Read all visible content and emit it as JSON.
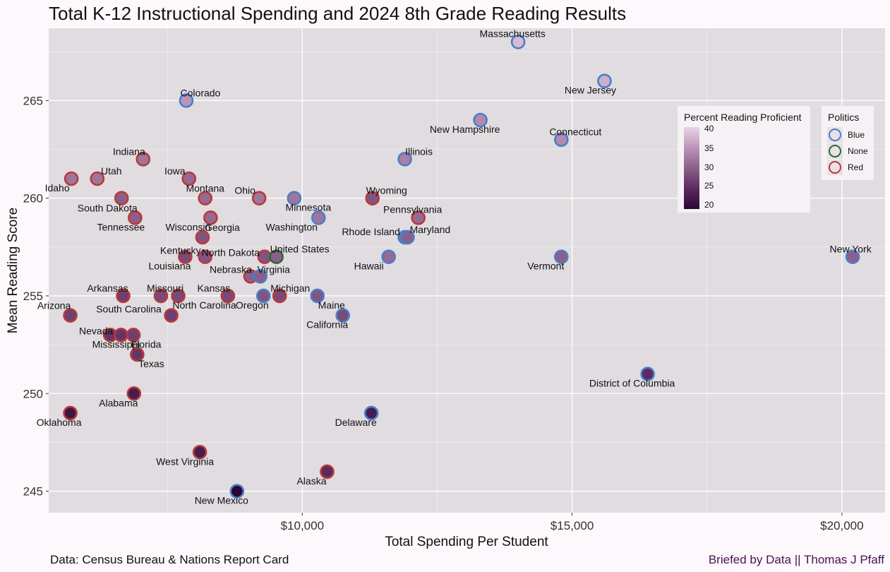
{
  "title": "Total K-12 Instructional Spending and 2024 8th Grade Reading Results",
  "caption_left": "Data: Census Bureau & Nations Report Card",
  "caption_right": "Briefed by Data || Thomas J Pfaff",
  "colors": {
    "panel": "#e0dce0",
    "grid": "#ffffff",
    "blue": "#4a7ec9",
    "none": "#1f6e32",
    "red": "#b83a3a",
    "fill_low": "#2b0733",
    "fill_high": "#e9d4e6"
  },
  "legend_fill": {
    "title": "Percent Reading Proficient",
    "ticks": [
      "40",
      "35",
      "30",
      "25",
      "20"
    ]
  },
  "legend_politics": {
    "title": "Politics",
    "items": [
      {
        "label": "Blue",
        "color": "#4a7ec9"
      },
      {
        "label": "None",
        "color": "#1f6e32"
      },
      {
        "label": "Red",
        "color": "#b83a3a"
      }
    ]
  },
  "chart_data": {
    "type": "scatter",
    "title": "Total K-12 Instructional Spending and 2024 8th Grade Reading Results",
    "xlabel": "Total Spending Per Student",
    "ylabel": "Mean Reading Score",
    "xlim": [
      5300,
      20800
    ],
    "ylim": [
      243.9,
      268.7
    ],
    "x_ticks": [
      10000,
      15000,
      20000
    ],
    "x_tick_labels": [
      "$10,000",
      "$15,000",
      "$20,000"
    ],
    "y_ticks": [
      245,
      250,
      255,
      260,
      265
    ],
    "y_tick_labels": [
      "245",
      "250",
      "255",
      "260",
      "265"
    ],
    "grid": true,
    "legend_position": "right",
    "color_scale": {
      "name": "Percent Reading Proficient",
      "min": 20,
      "max": 40
    },
    "points": [
      {
        "state": "Massachusetts",
        "x": 14000,
        "y": 268,
        "proficient": 38,
        "politics": "Blue"
      },
      {
        "state": "New Jersey",
        "x": 15600,
        "y": 266,
        "proficient": 37,
        "politics": "Blue"
      },
      {
        "state": "Colorado",
        "x": 7850,
        "y": 265,
        "proficient": 35,
        "politics": "Blue"
      },
      {
        "state": "New Hampshire",
        "x": 13300,
        "y": 264,
        "proficient": 34,
        "politics": "Blue"
      },
      {
        "state": "Connecticut",
        "x": 14800,
        "y": 263,
        "proficient": 34,
        "politics": "Blue"
      },
      {
        "state": "Illinois",
        "x": 11900,
        "y": 262,
        "proficient": 33,
        "politics": "Blue"
      },
      {
        "state": "Indiana",
        "x": 7050,
        "y": 262,
        "proficient": 32,
        "politics": "Red"
      },
      {
        "state": "Idaho",
        "x": 5720,
        "y": 261,
        "proficient": 32,
        "politics": "Red"
      },
      {
        "state": "Utah",
        "x": 6200,
        "y": 261,
        "proficient": 32,
        "politics": "Red"
      },
      {
        "state": "Iowa",
        "x": 7900,
        "y": 261,
        "proficient": 31,
        "politics": "Red"
      },
      {
        "state": "Montana",
        "x": 8200,
        "y": 260,
        "proficient": 31,
        "politics": "Red"
      },
      {
        "state": "South Dakota",
        "x": 6650,
        "y": 260,
        "proficient": 30,
        "politics": "Red"
      },
      {
        "state": "Wisconsin",
        "x": 8300,
        "y": 259,
        "proficient": 31,
        "politics": "Red"
      },
      {
        "state": "Ohio",
        "x": 9200,
        "y": 260,
        "proficient": 32,
        "politics": "Red"
      },
      {
        "state": "Minnesota",
        "x": 9850,
        "y": 260,
        "proficient": 32,
        "politics": "Blue"
      },
      {
        "state": "Wyoming",
        "x": 11300,
        "y": 260,
        "proficient": 29,
        "politics": "Red"
      },
      {
        "state": "Tennessee",
        "x": 6900,
        "y": 259,
        "proficient": 30,
        "politics": "Red"
      },
      {
        "state": "Washington",
        "x": 10300,
        "y": 259,
        "proficient": 32,
        "politics": "Blue"
      },
      {
        "state": "Pennsylvania",
        "x": 12150,
        "y": 259,
        "proficient": 31,
        "politics": "Red"
      },
      {
        "state": "Georgia",
        "x": 8150,
        "y": 258,
        "proficient": 29,
        "politics": "Red"
      },
      {
        "state": "Rhode Island",
        "x": 11900,
        "y": 258,
        "proficient": 31,
        "politics": "Blue"
      },
      {
        "state": "Maryland",
        "x": 11950,
        "y": 258,
        "proficient": 30,
        "politics": "Blue"
      },
      {
        "state": "Kentucky",
        "x": 8200,
        "y": 257,
        "proficient": 29,
        "politics": "Red"
      },
      {
        "state": "Louisiana",
        "x": 7830,
        "y": 257,
        "proficient": 28,
        "politics": "Red"
      },
      {
        "state": "North Dakota",
        "x": 9300,
        "y": 257,
        "proficient": 29,
        "politics": "Red"
      },
      {
        "state": "United States",
        "x": 9520,
        "y": 257,
        "proficient": 30,
        "politics": "None"
      },
      {
        "state": "Hawaii",
        "x": 11600,
        "y": 257,
        "proficient": 31,
        "politics": "Blue"
      },
      {
        "state": "Vermont",
        "x": 14800,
        "y": 257,
        "proficient": 30,
        "politics": "Blue"
      },
      {
        "state": "New York",
        "x": 20200,
        "y": 257,
        "proficient": 30,
        "politics": "Blue"
      },
      {
        "state": "Nebraska",
        "x": 9040,
        "y": 256,
        "proficient": 30,
        "politics": "Red"
      },
      {
        "state": "Virginia",
        "x": 9220,
        "y": 256,
        "proficient": 30,
        "politics": "Blue"
      },
      {
        "state": "Arkansas",
        "x": 6680,
        "y": 255,
        "proficient": 27,
        "politics": "Red"
      },
      {
        "state": "Missouri",
        "x": 7380,
        "y": 255,
        "proficient": 28,
        "politics": "Red"
      },
      {
        "state": "North Carolina",
        "x": 7700,
        "y": 255,
        "proficient": 28,
        "politics": "Red"
      },
      {
        "state": "Kansas",
        "x": 8620,
        "y": 255,
        "proficient": 28,
        "politics": "Red"
      },
      {
        "state": "Oregon",
        "x": 9280,
        "y": 255,
        "proficient": 29,
        "politics": "Blue"
      },
      {
        "state": "Michigan",
        "x": 9580,
        "y": 255,
        "proficient": 28,
        "politics": "Red"
      },
      {
        "state": "Maine",
        "x": 10280,
        "y": 255,
        "proficient": 29,
        "politics": "Blue"
      },
      {
        "state": "Arizona",
        "x": 5700,
        "y": 254,
        "proficient": 27,
        "politics": "Red"
      },
      {
        "state": "South Carolina",
        "x": 7570,
        "y": 254,
        "proficient": 27,
        "politics": "Red"
      },
      {
        "state": "California",
        "x": 10750,
        "y": 254,
        "proficient": 28,
        "politics": "Blue"
      },
      {
        "state": "Nevada",
        "x": 6440,
        "y": 253,
        "proficient": 26,
        "politics": "Red"
      },
      {
        "state": "Mississippi",
        "x": 6640,
        "y": 253,
        "proficient": 26,
        "politics": "Red"
      },
      {
        "state": "Florida",
        "x": 6870,
        "y": 253,
        "proficient": 27,
        "politics": "Red"
      },
      {
        "state": "Texas",
        "x": 6940,
        "y": 252,
        "proficient": 26,
        "politics": "Red"
      },
      {
        "state": "Alabama",
        "x": 6880,
        "y": 250,
        "proficient": 23,
        "politics": "Red"
      },
      {
        "state": "District of Columbia",
        "x": 16400,
        "y": 251,
        "proficient": 25,
        "politics": "Blue"
      },
      {
        "state": "Oklahoma",
        "x": 5700,
        "y": 249,
        "proficient": 22,
        "politics": "Red"
      },
      {
        "state": "Delaware",
        "x": 11280,
        "y": 249,
        "proficient": 23,
        "politics": "Blue"
      },
      {
        "state": "West Virginia",
        "x": 8100,
        "y": 247,
        "proficient": 23,
        "politics": "Red"
      },
      {
        "state": "Alaska",
        "x": 10460,
        "y": 246,
        "proficient": 25,
        "politics": "Red"
      },
      {
        "state": "New Mexico",
        "x": 8790,
        "y": 245,
        "proficient": 19,
        "politics": "Blue"
      }
    ]
  }
}
